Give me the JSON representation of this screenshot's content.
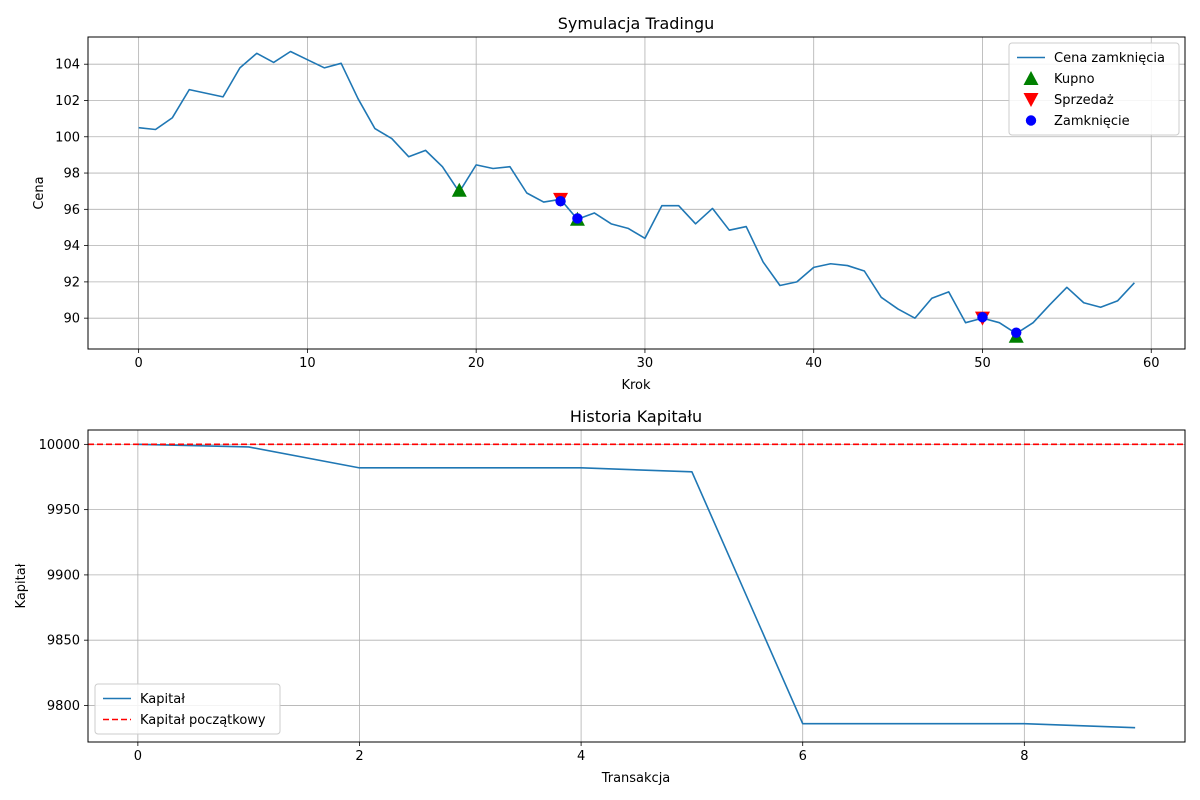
{
  "chart_data": [
    {
      "type": "line",
      "title": "Symulacja Tradingu",
      "xlabel": "Krok",
      "ylabel": "Cena",
      "xlim": [
        -3,
        62
      ],
      "ylim": [
        88.3,
        105.5
      ],
      "xticks": [
        0,
        10,
        20,
        30,
        40,
        50,
        60
      ],
      "yticks": [
        90,
        92,
        94,
        96,
        98,
        100,
        102,
        104
      ],
      "grid": true,
      "legend": "top-right",
      "series": [
        {
          "name": "Cena zamknięcia",
          "color": "#1f77b4",
          "x": [
            0,
            1,
            2,
            3,
            4,
            5,
            6,
            7,
            8,
            9,
            10,
            11,
            12,
            13,
            14,
            15,
            16,
            17,
            18,
            19,
            20,
            21,
            22,
            23,
            24,
            25,
            26,
            27,
            28,
            29,
            30,
            31,
            32,
            33,
            34,
            35,
            36,
            37,
            38,
            39,
            40,
            41,
            42,
            43,
            44,
            45,
            46,
            47,
            48,
            49,
            50,
            51,
            52,
            53,
            54,
            55,
            56,
            57,
            58,
            59
          ],
          "y": [
            100.5,
            100.4,
            101.05,
            102.6,
            102.4,
            102.2,
            103.8,
            104.6,
            104.1,
            104.7,
            104.25,
            103.8,
            104.05,
            102.1,
            100.45,
            99.9,
            98.9,
            99.25,
            98.35,
            96.95,
            98.45,
            98.25,
            98.35,
            96.9,
            96.4,
            96.55,
            95.45,
            95.8,
            95.2,
            94.95,
            94.4,
            96.2,
            96.2,
            95.2,
            96.05,
            94.85,
            95.05,
            93.1,
            91.8,
            92.0,
            92.8,
            93.0,
            92.9,
            92.6,
            91.15,
            90.5,
            90.0,
            91.1,
            91.45,
            89.75,
            90.0,
            89.75,
            89.15,
            89.75,
            90.75,
            91.7,
            90.85,
            90.6,
            90.95,
            91.95
          ]
        },
        {
          "name": "Kupno",
          "color": "#008000",
          "marker": "triangle-up",
          "x": [
            19,
            26,
            52
          ],
          "y": [
            97.05,
            95.45,
            89.0
          ]
        },
        {
          "name": "Sprzedaż",
          "color": "#ff0000",
          "marker": "triangle-down",
          "x": [
            25,
            50
          ],
          "y": [
            96.55,
            90.0
          ]
        },
        {
          "name": "Zamknięcie",
          "color": "#0000ff",
          "marker": "circle",
          "x": [
            25,
            26,
            50,
            52
          ],
          "y": [
            96.45,
            95.5,
            90.05,
            89.2
          ]
        }
      ]
    },
    {
      "type": "line",
      "title": "Historia Kapitału",
      "xlabel": "Transakcja",
      "ylabel": "Kapitał",
      "xlim": [
        -0.45,
        9.45
      ],
      "ylim": [
        9772,
        10011
      ],
      "xticks": [
        0,
        2,
        4,
        6,
        8
      ],
      "yticks": [
        9800,
        9850,
        9900,
        9950,
        10000
      ],
      "grid": true,
      "legend": "bottom-left",
      "series": [
        {
          "name": "Kapitał",
          "color": "#1f77b4",
          "x": [
            0,
            1,
            2,
            3,
            4,
            5,
            6,
            7,
            8,
            9
          ],
          "y": [
            10000,
            9998,
            9982,
            9982,
            9982,
            9979,
            9786,
            9786,
            9786,
            9783
          ]
        },
        {
          "name": "Kapitał początkowy",
          "color": "#ff0000",
          "style": "dashed",
          "hline": 10000
        }
      ]
    }
  ]
}
